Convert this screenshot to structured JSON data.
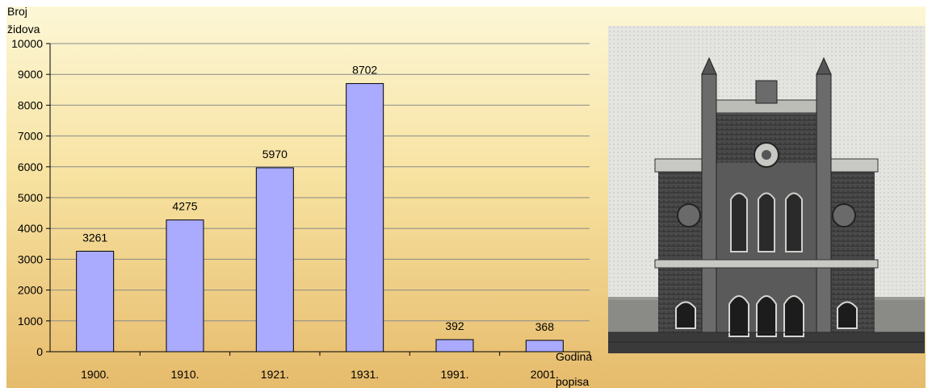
{
  "chart_data": {
    "type": "bar",
    "categories": [
      "1900.",
      "1910.",
      "1921.",
      "1931.",
      "1991.",
      "2001."
    ],
    "values": [
      3261,
      4275,
      5970,
      8702,
      392,
      368
    ],
    "data_labels": [
      "3261",
      "4275",
      "5970",
      "8702",
      "392",
      "368"
    ],
    "ylabel": [
      "Broj",
      "židova"
    ],
    "xlabel": [
      "Godina",
      "popisa"
    ],
    "ylim": [
      0,
      10000
    ],
    "yticks": [
      0,
      1000,
      2000,
      3000,
      4000,
      5000,
      6000,
      7000,
      8000,
      9000,
      10000
    ],
    "grid": true,
    "bar_color": "#aaaaff",
    "bar_edge_color": "#000000",
    "gridline_color": "#8a8a8a"
  },
  "photo": {
    "subject": "synagogue-building-icon",
    "style": "black-and-white"
  }
}
